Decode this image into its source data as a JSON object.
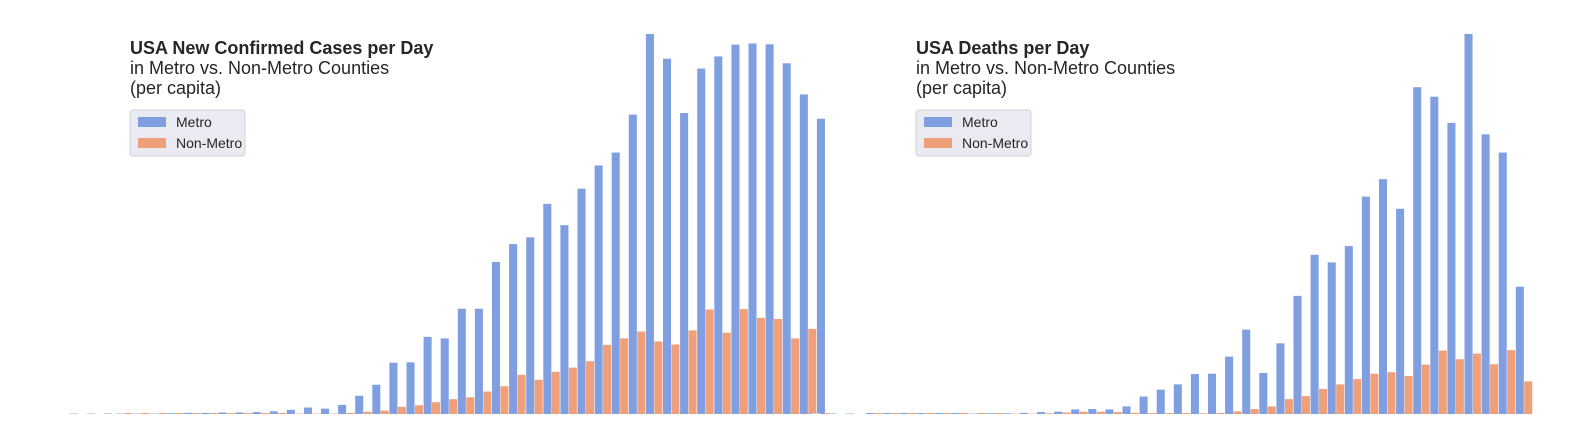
{
  "colors": {
    "metro": "#7f9fe0",
    "non_metro": "#efa07a",
    "legend_bg": "#eaeaf2",
    "legend_border": "#cfcfd8"
  },
  "chart_data": [
    {
      "type": "bar",
      "title": "USA New Confirmed Cases per Day",
      "subtitle_lines": [
        "in Metro vs. Non-Metro Counties",
        "(per capita)"
      ],
      "legend": [
        "Metro",
        "Non-Metro"
      ],
      "legend_placement": "top-left",
      "grid": false,
      "axes_visible": false,
      "ylim": [
        0,
        100
      ],
      "series": [
        {
          "name": "Metro",
          "values": [
            0.1,
            0.1,
            0.1,
            0.2,
            0.3,
            0.3,
            0.4,
            0.4,
            0.5,
            0.7,
            1.1,
            1.7,
            1.4,
            2.4,
            4.8,
            7.7,
            13.5,
            13.6,
            20.3,
            19.9,
            27.7,
            27.7,
            40.0,
            44.7,
            46.5,
            55.3,
            49.7,
            59.3,
            65.4,
            68.8,
            78.8,
            100.0,
            93.5,
            79.2,
            90.9,
            94.1,
            97.2,
            97.5,
            97.3,
            92.3,
            84.1,
            77.7
          ]
        },
        {
          "name": "Non-Metro",
          "values": [
            0.0,
            0.0,
            0.0,
            0.0,
            0.0,
            0.0,
            0.0,
            0.0,
            0.0,
            0.0,
            0.1,
            0.1,
            0.1,
            0.3,
            0.6,
            0.9,
            1.9,
            2.3,
            3.1,
            3.9,
            4.4,
            5.9,
            7.3,
            10.3,
            9.0,
            11.1,
            12.2,
            13.9,
            18.2,
            19.9,
            21.7,
            19.1,
            18.3,
            22.0,
            27.5,
            21.4,
            27.6,
            25.3,
            25.0,
            19.9,
            22.4,
            0.0
          ]
        }
      ]
    },
    {
      "type": "bar",
      "title": "USA Deaths per Day",
      "subtitle_lines": [
        "in Metro vs. Non-Metro Counties",
        "(per capita)"
      ],
      "legend": [
        "Metro",
        "Non-Metro"
      ],
      "legend_placement": "top-left",
      "grid": false,
      "axes_visible": false,
      "ylim": [
        0,
        100
      ],
      "series": [
        {
          "name": "Metro",
          "values": [
            0.0,
            0.0,
            0.0,
            0.0,
            0.0,
            0.0,
            0.1,
            0.2,
            0.2,
            0.3,
            0.5,
            0.6,
            1.2,
            1.3,
            1.2,
            2.0,
            4.6,
            6.4,
            7.8,
            10.5,
            10.6,
            15.1,
            22.2,
            10.8,
            18.6,
            31.1,
            41.9,
            39.9,
            44.2,
            57.2,
            61.8,
            54.0,
            86.0,
            83.5,
            76.6,
            100.0,
            73.6,
            68.8,
            33.5
          ]
        },
        {
          "name": "Non-Metro",
          "values": [
            0.0,
            0.0,
            0.0,
            0.0,
            0.0,
            0.0,
            0.0,
            0.0,
            0.1,
            0.1,
            0.2,
            0.4,
            0.6,
            0.6,
            0.5,
            0.3,
            0.0,
            0.0,
            0.0,
            0.2,
            0.3,
            0.7,
            1.3,
            2.0,
            3.9,
            4.7,
            6.6,
            7.8,
            9.2,
            10.6,
            11.0,
            10.0,
            13.0,
            16.7,
            14.4,
            15.9,
            13.1,
            16.8,
            8.6
          ]
        }
      ]
    }
  ]
}
